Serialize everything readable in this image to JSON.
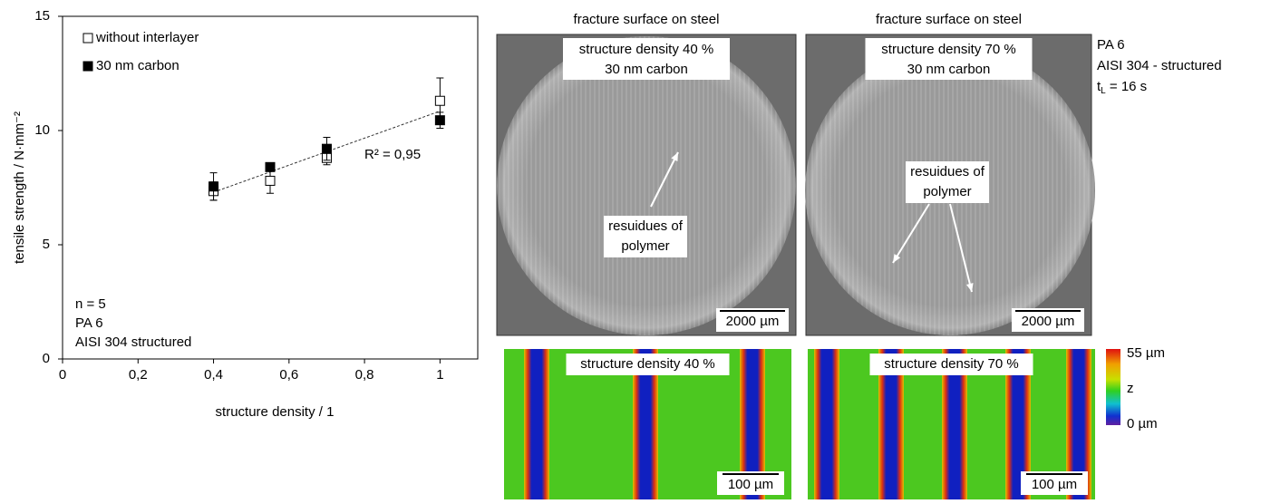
{
  "chart_data": {
    "type": "scatter",
    "y_label": "tensile strength / N·mm⁻²",
    "x_label": "structure density / 1",
    "xlim": [
      0,
      1.1
    ],
    "xticks": [
      0,
      {
        "value": 0.2,
        "label": "0,2"
      },
      {
        "value": 0.4,
        "label": "0,4"
      },
      {
        "value": 0.6,
        "label": "0,6"
      },
      {
        "value": 0.8,
        "label": "0,8"
      },
      1
    ],
    "ylim": [
      0,
      15
    ],
    "yticks": [
      0,
      5,
      10,
      15
    ],
    "x": [
      0.4,
      0.55,
      0.7,
      1
    ],
    "series": [
      {
        "name": "without interlayer",
        "marker": "open",
        "color": "#000000",
        "values": [
          7.35,
          7.8,
          8.8,
          11.3
        ],
        "errors": [
          0.4,
          0.55,
          0.3,
          1.0
        ]
      },
      {
        "name": "30 nm carbon",
        "marker": "filled",
        "color": "#000000",
        "values": [
          7.55,
          8.4,
          9.2,
          10.45
        ],
        "errors": [
          0.6,
          0.15,
          0.5,
          0.35
        ]
      }
    ],
    "trendline": {
      "x": [
        0.4,
        1
      ],
      "y": [
        7.3,
        10.85
      ]
    },
    "r2_label": "R² = 0,95",
    "notes": [
      "n = 5",
      "PA 6",
      "AISI 304 structured"
    ]
  },
  "micrographs": [
    {
      "heading": "fracture surface on steel",
      "label_lines": [
        "structure density 40 %",
        "30 nm carbon"
      ],
      "callout": [
        "resuidues of",
        "polymer"
      ],
      "scale_bar": "2000 µm"
    },
    {
      "heading": "fracture surface on steel",
      "label_lines": [
        "structure density 70 %",
        "30 nm carbon"
      ],
      "callout": [
        "resuidues of",
        "polymer"
      ],
      "scale_bar": "2000 µm"
    }
  ],
  "height_maps": [
    {
      "label": "structure density 40 %",
      "scale_bar": "100 µm"
    },
    {
      "label": "structure density 70 %",
      "scale_bar": "100 µm"
    }
  ],
  "color_scale": {
    "max": "55 µm",
    "axis": "z",
    "min": "0 µm"
  },
  "side_note": {
    "material": "PA 6",
    "substrate": "AISI 304 - structured",
    "time_symbol": "t",
    "time_subscript": "L",
    "time_value": " = 16 s"
  }
}
